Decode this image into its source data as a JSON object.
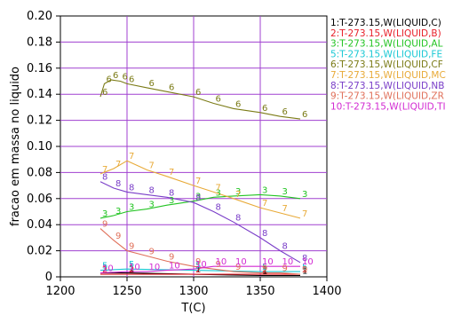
{
  "chart_data": {
    "type": "line",
    "title": "",
    "xlabel": "T(C)",
    "ylabel": "fracao em massa no liquido",
    "xlim": [
      1200,
      1400
    ],
    "ylim": [
      0,
      0.2
    ],
    "x_ticks": [
      1200,
      1250,
      1300,
      1350,
      1400
    ],
    "y_ticks": [
      0,
      0.02,
      0.04,
      0.06,
      0.08,
      0.1,
      0.12,
      0.14,
      0.16,
      0.18,
      0.2
    ],
    "x_tick_labels": [
      "1200",
      "1250",
      "1300",
      "1350",
      "1400"
    ],
    "y_tick_labels": [
      "0",
      "0.02",
      "0.04",
      "0.06",
      "0.08",
      "0.10",
      "0.12",
      "0.14",
      "0.16",
      "0.18",
      "0.20"
    ],
    "grid": true,
    "legend_position": "right",
    "series": [
      {
        "name": "1:T-273.15,W(LIQUID,C)",
        "marker": "1",
        "color": "#000000",
        "x": [
          1230,
          1250,
          1300,
          1350,
          1380
        ],
        "y": [
          0.003,
          0.003,
          0.002,
          0.001,
          0.001
        ]
      },
      {
        "name": "2:T-273.15,W(LIQUID,B)",
        "marker": "2",
        "color": "#e8202a",
        "x": [
          1230,
          1250,
          1300,
          1350,
          1380
        ],
        "y": [
          0.002,
          0.002,
          0.002,
          0.002,
          0.002
        ]
      },
      {
        "name": "3:T-273.15,W(LIQUID,AL",
        "marker": "3",
        "color": "#22c422",
        "x": [
          1230,
          1240,
          1250,
          1265,
          1280,
          1300,
          1315,
          1330,
          1350,
          1365,
          1380
        ],
        "y": [
          0.045,
          0.047,
          0.05,
          0.052,
          0.055,
          0.058,
          0.061,
          0.062,
          0.063,
          0.062,
          0.06
        ]
      },
      {
        "name": "5:T-273.15,W(LIQUID,FE",
        "marker": "5",
        "color": "#19c8d4",
        "x": [
          1230,
          1250,
          1300,
          1350,
          1380
        ],
        "y": [
          0.005,
          0.006,
          0.005,
          0.004,
          0.004
        ]
      },
      {
        "name": "6:T-273.15,W(LIQUID,CF",
        "marker": "6",
        "color": "#7b7b16",
        "x": [
          1230,
          1233,
          1238,
          1245,
          1250,
          1265,
          1280,
          1300,
          1315,
          1330,
          1350,
          1365,
          1380
        ],
        "y": [
          0.138,
          0.148,
          0.151,
          0.15,
          0.148,
          0.145,
          0.142,
          0.138,
          0.133,
          0.129,
          0.126,
          0.123,
          0.121
        ]
      },
      {
        "name": "7:T-273.15,W(LIQUID,MC",
        "marker": "7",
        "color": "#e8aa38",
        "x": [
          1230,
          1240,
          1250,
          1265,
          1280,
          1300,
          1315,
          1330,
          1350,
          1365,
          1380
        ],
        "y": [
          0.079,
          0.083,
          0.089,
          0.082,
          0.077,
          0.07,
          0.065,
          0.06,
          0.053,
          0.049,
          0.045
        ]
      },
      {
        "name": "8:T-273.15,W(LIQUID,NB",
        "marker": "8",
        "color": "#7a3ec8",
        "x": [
          1230,
          1240,
          1250,
          1265,
          1280,
          1300,
          1315,
          1330,
          1350,
          1365,
          1380
        ],
        "y": [
          0.073,
          0.068,
          0.065,
          0.063,
          0.061,
          0.057,
          0.05,
          0.042,
          0.03,
          0.02,
          0.011
        ]
      },
      {
        "name": "9:T-273.15,W(LIQUID,ZR",
        "marker": "9",
        "color": "#e0705a",
        "x": [
          1230,
          1240,
          1250,
          1265,
          1280,
          1300,
          1315,
          1330,
          1350,
          1365,
          1380
        ],
        "y": [
          0.037,
          0.028,
          0.02,
          0.016,
          0.012,
          0.008,
          0.006,
          0.004,
          0.003,
          0.003,
          0.002
        ]
      },
      {
        "name": "10:T-273.15,W(LIQUID,TI",
        "marker": "10",
        "color": "#d22ad2",
        "x": [
          1230,
          1250,
          1265,
          1280,
          1300,
          1315,
          1330,
          1350,
          1365,
          1380
        ],
        "y": [
          0.003,
          0.004,
          0.004,
          0.005,
          0.006,
          0.008,
          0.008,
          0.008,
          0.008,
          0.008
        ]
      }
    ]
  }
}
